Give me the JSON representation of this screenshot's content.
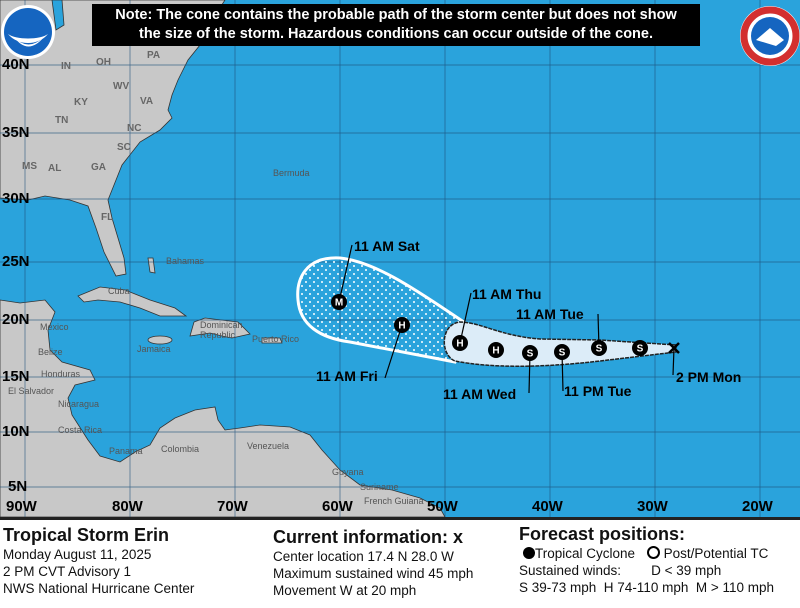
{
  "note": {
    "line1": "Note: The cone contains the probable path of the storm center but does not show",
    "line2": "the size of the storm. Hazardous conditions can occur outside of the cone."
  },
  "logos": {
    "noaa": "NOAA",
    "nws": "NATIONAL WEATHER SERVICE"
  },
  "colors": {
    "ocean": "#2aa3dc",
    "land": "#c8c8c8",
    "cone_day1_3": "#dcecf8",
    "note_bg": "#000000"
  },
  "axes": {
    "lat": [
      "40N",
      "35N",
      "30N",
      "25N",
      "20N",
      "15N",
      "10N",
      "5N"
    ],
    "lon": [
      "90W",
      "80W",
      "70W",
      "60W",
      "50W",
      "40W",
      "30W",
      "20W"
    ]
  },
  "states": [
    "IN",
    "OH",
    "PA",
    "WV",
    "KY",
    "VA",
    "TN",
    "NC",
    "SC",
    "MS",
    "AL",
    "GA",
    "FL"
  ],
  "places": [
    "Bermuda",
    "Bahamas",
    "Cuba",
    "Dominican Republic",
    "Puerto Rico",
    "Jamaica",
    "Mexico",
    "Belize",
    "Honduras",
    "El Salvador",
    "Nicaragua",
    "Costa Rica",
    "Panama",
    "Colombia",
    "Venezuela",
    "Guyana",
    "Suriname",
    "French Guiana"
  ],
  "track": {
    "current_marker": "x",
    "points": [
      {
        "label": "2 PM Mon",
        "type": "X"
      },
      {
        "label": "",
        "type": "S"
      },
      {
        "label": "11 AM Tue",
        "type": "S"
      },
      {
        "label": "11 PM Tue",
        "type": "S"
      },
      {
        "label": "11 AM Wed",
        "type": "S"
      },
      {
        "label": "",
        "type": "H"
      },
      {
        "label": "11 AM Thu",
        "type": "H"
      },
      {
        "label": "11 AM Fri",
        "type": "H"
      },
      {
        "label": "11 AM Sat",
        "type": "M"
      }
    ]
  },
  "legend": {
    "storm_name": "Tropical Storm Erin",
    "date": "Monday August 11, 2025",
    "advisory": "2 PM CVT Advisory 1",
    "center": "NWS National Hurricane Center",
    "current_title": "Current information: x",
    "location": "Center location 17.4 N 28.0 W",
    "wind": "Maximum sustained wind 45 mph",
    "movement": "Movement W at 20 mph",
    "forecast_title": "Forecast positions:",
    "tc": "Tropical Cyclone",
    "post_tc": "Post/Potential TC",
    "sustained": "Sustained winds:",
    "d": "D < 39 mph",
    "shm": "S 39-73 mph  H 74-110 mph  M > 110 mph"
  }
}
